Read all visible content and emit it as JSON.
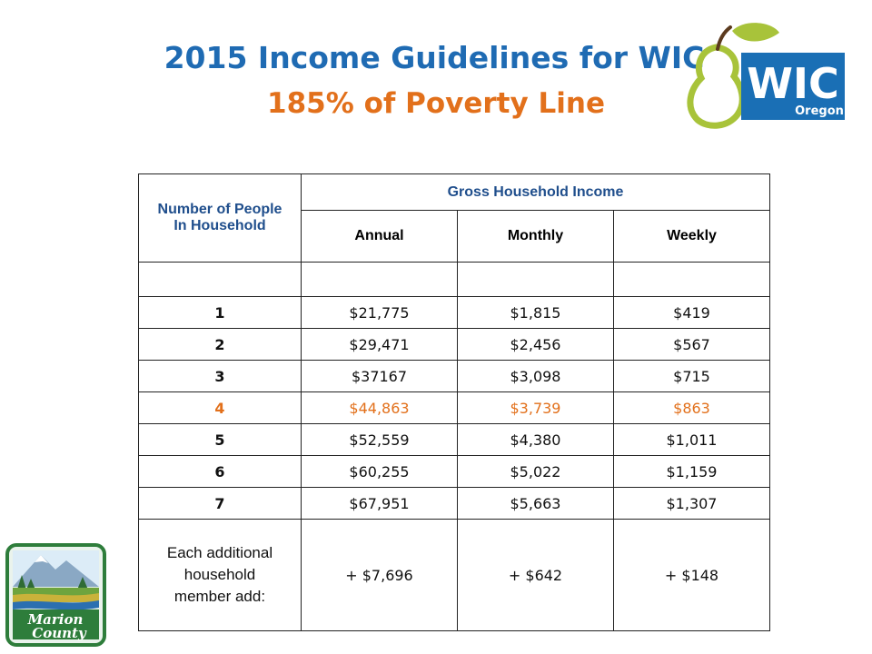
{
  "title": {
    "line1": "2015 Income Guidelines for WIC",
    "line2": "185% of Poverty Line"
  },
  "logos": {
    "wic_text": "WIC",
    "wic_sub": "Oregon",
    "marion_line1": "Marion",
    "marion_line2": "County"
  },
  "colors": {
    "title_blue": "#1f6bb3",
    "accent_orange": "#e2701b",
    "wic_blue": "#1a6fb5",
    "wic_green": "#a8c33a"
  },
  "table": {
    "header_people": "Number of People In Household",
    "header_income": "Gross Household Income",
    "columns": [
      "Annual",
      "Monthly",
      "Weekly"
    ],
    "rows": [
      {
        "people": "1",
        "annual": "$21,775",
        "monthly": "$1,815",
        "weekly": "$419"
      },
      {
        "people": "2",
        "annual": "$29,471",
        "monthly": "$2,456",
        "weekly": "$567"
      },
      {
        "people": "3",
        "annual": "$37167",
        "monthly": "$3,098",
        "weekly": "$715"
      },
      {
        "people": "4",
        "annual": "$44,863",
        "monthly": "$3,739",
        "weekly": "$863"
      },
      {
        "people": "5",
        "annual": "$52,559",
        "monthly": "$4,380",
        "weekly": "$1,011"
      },
      {
        "people": "6",
        "annual": "$60,255",
        "monthly": "$5,022",
        "weekly": "$1,159"
      },
      {
        "people": "7",
        "annual": "$67,951",
        "monthly": "$5,663",
        "weekly": "$1,307"
      }
    ],
    "additional": {
      "label": "Each additional household member add:",
      "annual": "+ $7,696",
      "monthly": "+ $642",
      "weekly": "+ $148"
    }
  }
}
